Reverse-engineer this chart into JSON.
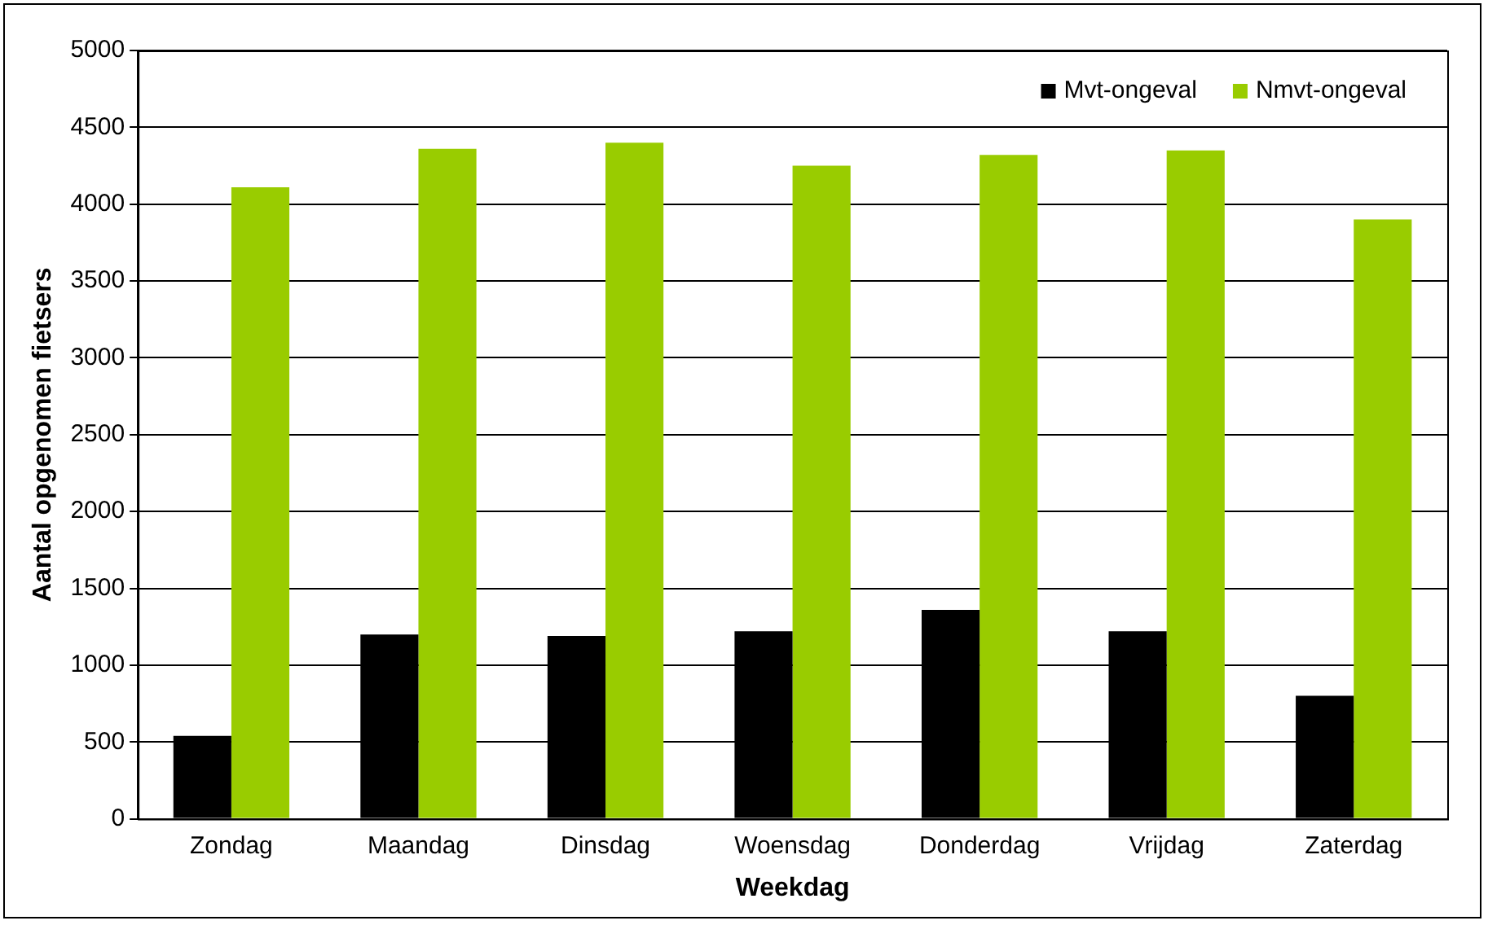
{
  "chart_data": {
    "type": "bar",
    "xlabel": "Weekdag",
    "ylabel": "Aantal opgenomen fietsers",
    "categories": [
      "Zondag",
      "Maandag",
      "Dinsdag",
      "Woensdag",
      "Donderdag",
      "Vrijdag",
      "Zaterdag"
    ],
    "series": [
      {
        "name": "Mvt-ongeval",
        "color": "#000000",
        "values": [
          540,
          1200,
          1190,
          1220,
          1360,
          1220,
          800
        ]
      },
      {
        "name": "Nmvt-ongeval",
        "color": "#99cc00",
        "values": [
          4110,
          4360,
          4400,
          4250,
          4320,
          4350,
          3900
        ]
      }
    ],
    "ylim": [
      0,
      5000
    ],
    "yticks": [
      0,
      500,
      1000,
      1500,
      2000,
      2500,
      3000,
      3500,
      4000,
      4500,
      5000
    ],
    "grid": "y",
    "legend": "top right"
  }
}
